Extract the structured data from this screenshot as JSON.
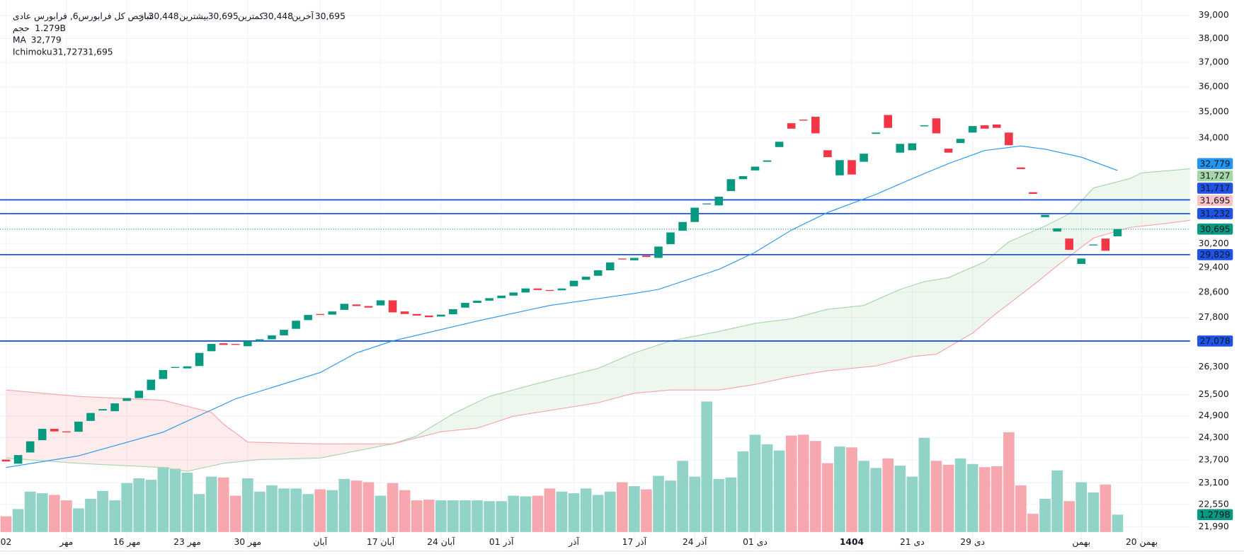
{
  "chart_data": {
    "type": "candlestick",
    "title": "شاخص کل فرابورس6, فرابورس عادی",
    "ohlc_legend": [
      {
        "name": "باز",
        "value": 30448,
        "label": "30,448"
      },
      {
        "name": "بیشترین",
        "value": 30695,
        "label": "30,695"
      },
      {
        "name": "کمترین",
        "value": 30448,
        "label": "30,448"
      },
      {
        "name": "آخرین",
        "value": 30695,
        "label": "30,695"
      }
    ],
    "up_color": "#089981",
    "down_color": "#f23645",
    "open": [
      23710,
      23600,
      23900,
      24230,
      24540,
      24470,
      24460,
      24760,
      25050,
      25030,
      25320,
      25400,
      25630,
      25950,
      26280,
      26260,
      26330,
      26770,
      27010,
      26990,
      26920,
      27080,
      27130,
      27250,
      27450,
      27720,
      27910,
      27890,
      28040,
      28210,
      28160,
      28180,
      28340,
      27990,
      27910,
      27860,
      27830,
      27900,
      28110,
      28260,
      28330,
      28410,
      28490,
      28590,
      28720,
      28670,
      28660,
      28790,
      29000,
      29130,
      29310,
      29700,
      29640,
      29800,
      29720,
      30180,
      30640,
      30940,
      31570,
      31520,
      32030,
      32460,
      32780,
      33100,
      33650,
      34560,
      34700,
      34810,
      33530,
      32600,
      33160,
      33100,
      34150,
      34880,
      33440,
      33530,
      34440,
      34750,
      33590,
      33800,
      34200,
      34480,
      34510,
      34200,
      32890,
      31990,
      31110,
      30610,
      30370,
      29520,
      30150,
      30370,
      30448
    ],
    "close": [
      23660,
      23830,
      24200,
      24540,
      24470,
      24450,
      24740,
      24980,
      25090,
      25250,
      25400,
      25610,
      25930,
      26210,
      26300,
      26320,
      26720,
      26990,
      26960,
      26970,
      27080,
      27130,
      27250,
      27420,
      27700,
      27880,
      27890,
      27990,
      28230,
      28160,
      28110,
      28340,
      27960,
      27910,
      27860,
      27810,
      27890,
      28060,
      28260,
      28330,
      28410,
      28490,
      28590,
      28720,
      28670,
      28640,
      28720,
      28970,
      29100,
      29310,
      29570,
      29680,
      29720,
      29750,
      30100,
      30580,
      30940,
      31440,
      31590,
      31830,
      32460,
      32570,
      32920,
      33150,
      33850,
      34350,
      34680,
      34170,
      33270,
      33160,
      32630,
      33400,
      34200,
      34380,
      33770,
      33790,
      34480,
      34170,
      33440,
      33960,
      34450,
      34350,
      34380,
      33720,
      32830,
      31930,
      31190,
      30720,
      29990,
      29700,
      30170,
      29960,
      30695
    ],
    "xlim": [
      -0.5,
      98
    ],
    "xticks": [
      {
        "value": 0,
        "label": "02"
      },
      {
        "value": 5,
        "label": "مهر"
      },
      {
        "value": 10,
        "label": "16 مهر"
      },
      {
        "value": 15,
        "label": "23 مهر"
      },
      {
        "value": 20,
        "label": "30 مهر"
      },
      {
        "value": 26,
        "label": "آبان"
      },
      {
        "value": 31,
        "label": "17 آبان"
      },
      {
        "value": 36,
        "label": "24 آبان"
      },
      {
        "value": 41,
        "label": "01 آذر"
      },
      {
        "value": 47,
        "label": "آذر"
      },
      {
        "value": 52,
        "label": "17 آذر"
      },
      {
        "value": 57,
        "label": "24 آذر"
      },
      {
        "value": 62,
        "label": "01 دی"
      },
      {
        "value": 70,
        "label": "1404"
      },
      {
        "value": 75,
        "label": "21 دی"
      },
      {
        "value": 80,
        "label": "29 دی"
      },
      {
        "value": 89,
        "label": "بهمن"
      },
      {
        "value": 94,
        "label": "20 بهمن"
      }
    ],
    "ylim": [
      21400,
      39500
    ],
    "log_scale": true,
    "grid": true,
    "yticks": [
      {
        "value": 39000,
        "label": "39,000"
      },
      {
        "value": 38000,
        "label": "38,000"
      },
      {
        "value": 37000,
        "label": "37,000"
      },
      {
        "value": 36000,
        "label": "36,000"
      },
      {
        "value": 35000,
        "label": "35,000"
      },
      {
        "value": 34000,
        "label": "34,000"
      },
      {
        "value": 30200,
        "label": "30,200"
      },
      {
        "value": 29400,
        "label": "29,400"
      },
      {
        "value": 28600,
        "label": "28,600"
      },
      {
        "value": 27800,
        "label": "27,800"
      },
      {
        "value": 26300,
        "label": "26,300"
      },
      {
        "value": 25500,
        "label": "25,500"
      },
      {
        "value": 24900,
        "label": "24,900"
      },
      {
        "value": 24300,
        "label": "24,300"
      },
      {
        "value": 23700,
        "label": "23,700"
      },
      {
        "value": 23100,
        "label": "23,100"
      },
      {
        "value": 22550,
        "label": "22,550"
      },
      {
        "value": 21990,
        "label": "21,990"
      }
    ],
    "volume": {
      "name": "حجم",
      "values": [
        1.16,
        1.69,
        2.97,
        2.85,
        2.73,
        2.33,
        1.74,
        2.44,
        3.02,
        2.33,
        3.6,
        3.95,
        3.84,
        4.77,
        4.65,
        4.36,
        2.79,
        4.07,
        4.01,
        2.67,
        3.95,
        2.97,
        3.43,
        3.2,
        3.2,
        2.79,
        3.14,
        3.08,
        3.9,
        3.78,
        3.66,
        2.67,
        3.6,
        3.08,
        2.33,
        2.38,
        2.33,
        2.33,
        2.33,
        2.33,
        2.27,
        2.27,
        2.67,
        2.62,
        2.67,
        3.2,
        2.97,
        2.85,
        3.2,
        2.73,
        2.97,
        3.66,
        3.37,
        3.14,
        4.13,
        3.78,
        5.23,
        4.07,
        9.59,
        3.9,
        4.01,
        5.93,
        7.15,
        6.45,
        5.99,
        7.09,
        7.15,
        6.69,
        5.06,
        6.28,
        6.22,
        5.23,
        4.71,
        5.41,
        4.88,
        4.07,
        6.92,
        5.23,
        4.94,
        5.41,
        5.0,
        4.77,
        4.83,
        7.33,
        3.43,
        1.34,
        2.44,
        4.53,
        2.27,
        3.66,
        2.91,
        3.49,
        1.279
      ],
      "vlim": [
        0,
        12
      ],
      "up_color": "#92d3c8",
      "down_color": "#f7a8af",
      "last": {
        "value": 1.279,
        "label": "1.279B"
      }
    },
    "ma": {
      "name": "MA",
      "color": "#2196f3",
      "x": [
        0,
        6,
        13,
        19,
        26,
        29,
        32,
        39,
        45,
        52,
        54,
        59,
        62,
        65,
        68,
        72,
        75,
        78,
        81,
        84,
        86,
        89,
        92
      ],
      "values": [
        23500,
        23810,
        24450,
        25380,
        26140,
        26720,
        27080,
        27690,
        28180,
        28560,
        28690,
        29340,
        29910,
        30660,
        31270,
        31910,
        32480,
        33030,
        33520,
        33690,
        33570,
        33270,
        32779
      ],
      "last": {
        "value": 32779,
        "label": "32,779"
      }
    },
    "ichimoku": {
      "name": "Ichimoku",
      "span_a": {
        "color": "#a5d6a7",
        "fill": "#4caf50",
        "x": [
          0,
          6,
          13,
          15,
          18,
          21,
          26,
          28,
          32,
          34,
          37,
          40,
          43,
          45,
          49,
          52,
          55,
          59,
          62,
          65,
          68,
          71,
          74,
          76,
          78,
          81,
          83,
          86,
          88,
          90,
          93,
          94,
          98
        ],
        "values": [
          23750,
          23610,
          23500,
          23400,
          23610,
          23710,
          23750,
          23880,
          24130,
          24350,
          24960,
          25450,
          25730,
          25910,
          26260,
          26720,
          27080,
          27370,
          27620,
          27760,
          28060,
          28180,
          28690,
          28940,
          29070,
          29590,
          30260,
          30800,
          31220,
          32140,
          32480,
          32690,
          32840
        ]
      },
      "span_b": {
        "color": "#f7a1a8",
        "fill": "#f23645",
        "x": [
          0,
          6,
          13,
          17,
          18,
          20,
          26,
          32,
          36,
          39,
          42,
          45,
          49,
          52,
          55,
          59,
          62,
          65,
          68,
          72,
          75,
          77,
          80,
          82,
          85,
          87,
          90,
          93,
          96,
          98
        ],
        "values": [
          25630,
          25450,
          25340,
          25000,
          24670,
          24180,
          24130,
          24130,
          24460,
          24560,
          24890,
          25050,
          25270,
          25540,
          25630,
          25630,
          25790,
          26020,
          26190,
          26330,
          26610,
          26680,
          27320,
          27940,
          28820,
          29460,
          30390,
          30750,
          30890,
          31000
        ]
      },
      "labels": [
        {
          "value": 31727,
          "label": "31,727"
        },
        {
          "value": 31695,
          "label": "31,695"
        }
      ]
    },
    "hlines": {
      "color": "#1e53e5",
      "levels": [
        {
          "value": 31717,
          "label": "31,717"
        },
        {
          "value": 31232,
          "label": "31,232"
        },
        {
          "value": 29829,
          "label": "29,829"
        },
        {
          "value": 27078,
          "label": "27,078"
        }
      ]
    }
  }
}
